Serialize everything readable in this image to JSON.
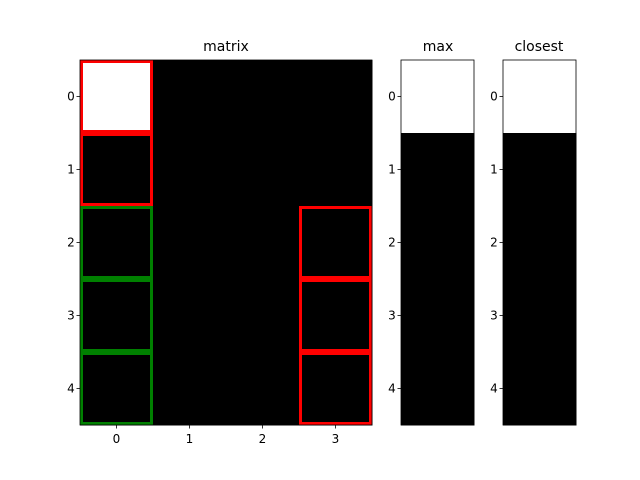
{
  "chart_data": [
    {
      "type": "heatmap",
      "title": "matrix",
      "rows": [
        0,
        1,
        2,
        3,
        4
      ],
      "cols": [
        0,
        1,
        2,
        3
      ],
      "values": [
        [
          1,
          0,
          0,
          0
        ],
        [
          0,
          0,
          0,
          0
        ],
        [
          0,
          0,
          0,
          0
        ],
        [
          0,
          0,
          0,
          0
        ],
        [
          0,
          0,
          0,
          0
        ]
      ],
      "xticks": [
        "0",
        "1",
        "2",
        "3"
      ],
      "yticks": [
        "0",
        "1",
        "2",
        "3",
        "4"
      ],
      "colormap": {
        "low": "#000000",
        "high": "#ffffff"
      },
      "highlights": [
        {
          "row": 0,
          "col": 0,
          "color": "#ff0000"
        },
        {
          "row": 1,
          "col": 0,
          "color": "#ff0000"
        },
        {
          "row": 2,
          "col": 0,
          "color": "#008000"
        },
        {
          "row": 3,
          "col": 0,
          "color": "#008000"
        },
        {
          "row": 4,
          "col": 0,
          "color": "#008000"
        },
        {
          "row": 2,
          "col": 3,
          "color": "#ff0000"
        },
        {
          "row": 3,
          "col": 3,
          "color": "#ff0000"
        },
        {
          "row": 4,
          "col": 3,
          "color": "#ff0000"
        }
      ]
    },
    {
      "type": "heatmap",
      "title": "max",
      "rows": [
        0,
        1,
        2,
        3,
        4
      ],
      "cols": [
        0
      ],
      "values": [
        [
          1
        ],
        [
          0
        ],
        [
          0
        ],
        [
          0
        ],
        [
          0
        ]
      ],
      "yticks": [
        "0",
        "1",
        "2",
        "3",
        "4"
      ],
      "colormap": {
        "low": "#000000",
        "high": "#ffffff"
      }
    },
    {
      "type": "heatmap",
      "title": "closest",
      "rows": [
        0,
        1,
        2,
        3,
        4
      ],
      "cols": [
        0
      ],
      "values": [
        [
          1
        ],
        [
          0
        ],
        [
          0
        ],
        [
          0
        ],
        [
          0
        ]
      ],
      "yticks": [
        "0",
        "1",
        "2",
        "3",
        "4"
      ],
      "colormap": {
        "low": "#000000",
        "high": "#ffffff"
      }
    }
  ]
}
